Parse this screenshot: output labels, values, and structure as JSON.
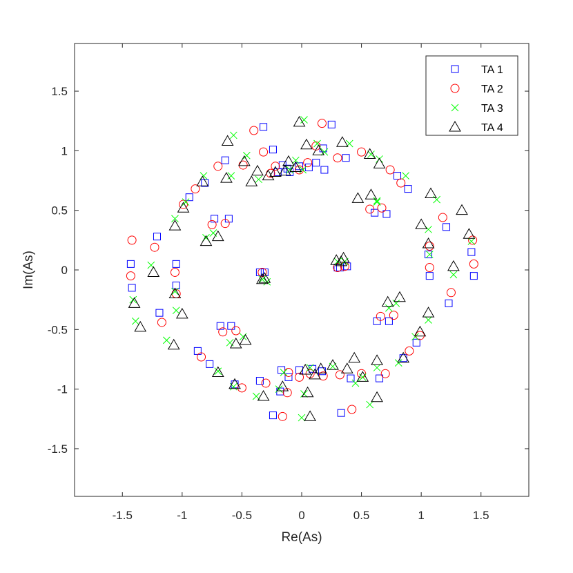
{
  "chart_data": {
    "type": "scatter",
    "xlabel": "Re(As)",
    "ylabel": "Im(As)",
    "xlim": [
      -1.9,
      1.9
    ],
    "ylim": [
      -1.9,
      1.9
    ],
    "xticks": [
      -1.5,
      -1,
      -0.5,
      0,
      0.5,
      1,
      1.5
    ],
    "yticks": [
      -1.5,
      -1,
      -0.5,
      0,
      0.5,
      1,
      1.5
    ],
    "xtick_labels": [
      "-1.5",
      "-1",
      "-0.5",
      "0",
      "0.5",
      "1",
      "1.5"
    ],
    "ytick_labels": [
      "-1.5",
      "-1",
      "-0.5",
      "0",
      "0.5",
      "1",
      "1.5"
    ],
    "grid": false,
    "legend_position": "top-right",
    "series": [
      {
        "name": "TA 1",
        "marker": "square",
        "color": "#0000ff",
        "points": [
          [
            -1.43,
            0.05
          ],
          [
            -1.42,
            -0.15
          ],
          [
            -1.21,
            0.28
          ],
          [
            -1.19,
            -0.36
          ],
          [
            -1.05,
            0.05
          ],
          [
            -1.05,
            -0.13
          ],
          [
            -0.94,
            0.61
          ],
          [
            -0.87,
            -0.68
          ],
          [
            -0.81,
            0.73
          ],
          [
            -0.77,
            -0.79
          ],
          [
            -0.73,
            0.43
          ],
          [
            -0.68,
            -0.47
          ],
          [
            -0.64,
            0.92
          ],
          [
            -0.61,
            0.43
          ],
          [
            -0.59,
            -0.47
          ],
          [
            -0.56,
            -0.96
          ],
          [
            -0.35,
            -0.02
          ],
          [
            -0.35,
            -0.93
          ],
          [
            -0.32,
            1.2
          ],
          [
            -0.31,
            -0.02
          ],
          [
            -0.24,
            1.01
          ],
          [
            -0.24,
            -1.22
          ],
          [
            -0.2,
            0.82
          ],
          [
            -0.18,
            -1.02
          ],
          [
            -0.17,
            -0.84
          ],
          [
            -0.16,
            0.88
          ],
          [
            -0.12,
            0.85
          ],
          [
            -0.11,
            -0.9
          ],
          [
            -0.1,
            0.82
          ],
          [
            -0.02,
            0.87
          ],
          [
            -0.02,
            -0.84
          ],
          [
            0.06,
            0.86
          ],
          [
            0.09,
            -0.83
          ],
          [
            0.12,
            0.9
          ],
          [
            0.17,
            -0.85
          ],
          [
            0.18,
            1.02
          ],
          [
            0.19,
            0.84
          ],
          [
            0.25,
            1.22
          ],
          [
            0.3,
            0.02
          ],
          [
            0.32,
            0.02
          ],
          [
            0.33,
            -1.2
          ],
          [
            0.37,
            0.94
          ],
          [
            0.38,
            0.03
          ],
          [
            0.41,
            -0.91
          ],
          [
            0.61,
            0.48
          ],
          [
            0.63,
            -0.43
          ],
          [
            0.65,
            -0.91
          ],
          [
            0.71,
            0.47
          ],
          [
            0.73,
            -0.43
          ],
          [
            0.8,
            0.79
          ],
          [
            0.85,
            -0.74
          ],
          [
            0.89,
            0.68
          ],
          [
            0.96,
            -0.61
          ],
          [
            1.06,
            0.13
          ],
          [
            1.07,
            -0.05
          ],
          [
            1.21,
            0.36
          ],
          [
            1.23,
            -0.28
          ],
          [
            1.42,
            0.15
          ],
          [
            1.44,
            -0.05
          ]
        ]
      },
      {
        "name": "TA 2",
        "marker": "circle",
        "color": "#ff0000",
        "points": [
          [
            -1.43,
            -0.05
          ],
          [
            -1.42,
            0.25
          ],
          [
            -1.23,
            0.19
          ],
          [
            -1.17,
            -0.44
          ],
          [
            -1.06,
            -0.02
          ],
          [
            -1.05,
            -0.2
          ],
          [
            -0.99,
            0.55
          ],
          [
            -0.89,
            0.68
          ],
          [
            -0.84,
            -0.73
          ],
          [
            -0.75,
            0.38
          ],
          [
            -0.7,
            0.87
          ],
          [
            -0.66,
            -0.52
          ],
          [
            -0.64,
            0.39
          ],
          [
            -0.55,
            -0.51
          ],
          [
            -0.5,
            -0.99
          ],
          [
            -0.49,
            0.88
          ],
          [
            -0.4,
            1.17
          ],
          [
            -0.33,
            -0.02
          ],
          [
            -0.32,
            0.99
          ],
          [
            -0.3,
            -0.95
          ],
          [
            -0.26,
            0.81
          ],
          [
            -0.22,
            0.87
          ],
          [
            -0.16,
            -1.23
          ],
          [
            -0.12,
            -1.03
          ],
          [
            -0.11,
            -0.86
          ],
          [
            -0.02,
            0.84
          ],
          [
            -0.02,
            -0.9
          ],
          [
            0.05,
            0.9
          ],
          [
            0.07,
            -0.87
          ],
          [
            0.12,
            1.04
          ],
          [
            0.17,
            1.23
          ],
          [
            0.18,
            -0.89
          ],
          [
            0.3,
            0.94
          ],
          [
            0.3,
            0.02
          ],
          [
            0.36,
            0.03
          ],
          [
            0.32,
            -0.88
          ],
          [
            0.42,
            -1.17
          ],
          [
            0.5,
            0.99
          ],
          [
            0.5,
            -0.87
          ],
          [
            0.57,
            0.51
          ],
          [
            0.66,
            -0.39
          ],
          [
            0.67,
            0.52
          ],
          [
            0.7,
            -0.87
          ],
          [
            0.74,
            0.84
          ],
          [
            0.77,
            -0.38
          ],
          [
            0.83,
            0.73
          ],
          [
            0.9,
            -0.68
          ],
          [
            0.99,
            -0.55
          ],
          [
            1.07,
            0.2
          ],
          [
            1.07,
            0.02
          ],
          [
            1.18,
            0.44
          ],
          [
            1.25,
            -0.19
          ],
          [
            1.43,
            0.25
          ],
          [
            1.44,
            0.05
          ]
        ]
      },
      {
        "name": "TA 3",
        "marker": "x",
        "color": "#00ff00",
        "points": [
          [
            -1.41,
            -0.25
          ],
          [
            -1.39,
            -0.43
          ],
          [
            -1.26,
            0.04
          ],
          [
            -1.13,
            -0.59
          ],
          [
            -1.06,
            0.43
          ],
          [
            -1.05,
            -0.34
          ],
          [
            -1.06,
            -0.18
          ],
          [
            -0.97,
            0.57
          ],
          [
            -0.82,
            0.79
          ],
          [
            -0.8,
            0.27
          ],
          [
            -0.74,
            0.31
          ],
          [
            -0.7,
            -0.85
          ],
          [
            -0.59,
            0.79
          ],
          [
            -0.57,
            1.13
          ],
          [
            -0.57,
            -0.98
          ],
          [
            -0.6,
            -0.61
          ],
          [
            -0.49,
            -0.56
          ],
          [
            -0.46,
            0.96
          ],
          [
            -0.38,
            -1.06
          ],
          [
            -0.36,
            0.76
          ],
          [
            -0.33,
            -0.08
          ],
          [
            -0.29,
            -0.1
          ],
          [
            -0.19,
            -1.0
          ],
          [
            -0.15,
            -0.86
          ],
          [
            -0.1,
            0.84
          ],
          [
            -0.05,
            0.92
          ],
          [
            0.0,
            -1.24
          ],
          [
            0.01,
            0.84
          ],
          [
            0.02,
            1.26
          ],
          [
            0.02,
            -1.04
          ],
          [
            0.07,
            -0.82
          ],
          [
            0.13,
            1.06
          ],
          [
            0.19,
            0.99
          ],
          [
            0.26,
            -0.81
          ],
          [
            0.3,
            0.07
          ],
          [
            0.36,
            0.07
          ],
          [
            0.4,
            1.06
          ],
          [
            0.45,
            -0.95
          ],
          [
            0.51,
            -0.9
          ],
          [
            0.58,
            0.97
          ],
          [
            0.57,
            -1.13
          ],
          [
            0.63,
            0.58
          ],
          [
            0.63,
            0.57
          ],
          [
            0.63,
            -0.82
          ],
          [
            0.65,
            0.93
          ],
          [
            0.73,
            -0.32
          ],
          [
            0.79,
            -0.28
          ],
          [
            0.81,
            -0.78
          ],
          [
            0.87,
            0.79
          ],
          [
            0.95,
            -0.56
          ],
          [
            1.06,
            0.34
          ],
          [
            1.07,
            0.13
          ],
          [
            1.06,
            -0.42
          ],
          [
            1.13,
            0.59
          ],
          [
            1.27,
            -0.04
          ],
          [
            1.42,
            0.24
          ]
        ]
      },
      {
        "name": "TA 4",
        "marker": "triangle",
        "color": "#000000",
        "points": [
          [
            -1.4,
            -0.28
          ],
          [
            -1.35,
            -0.48
          ],
          [
            -1.24,
            -0.02
          ],
          [
            -1.06,
            0.37
          ],
          [
            -1.06,
            -0.2
          ],
          [
            -1.0,
            -0.37
          ],
          [
            -0.99,
            0.52
          ],
          [
            -1.07,
            -0.63
          ],
          [
            -0.83,
            0.74
          ],
          [
            -0.8,
            0.24
          ],
          [
            -0.7,
            0.28
          ],
          [
            -0.7,
            -0.86
          ],
          [
            -0.62,
            1.08
          ],
          [
            -0.63,
            0.77
          ],
          [
            -0.56,
            -0.96
          ],
          [
            -0.55,
            -0.62
          ],
          [
            -0.48,
            0.91
          ],
          [
            -0.47,
            -0.59
          ],
          [
            -0.42,
            0.74
          ],
          [
            -0.37,
            0.83
          ],
          [
            -0.33,
            -0.08
          ],
          [
            -0.32,
            -1.06
          ],
          [
            -0.31,
            -0.07
          ],
          [
            -0.28,
            0.79
          ],
          [
            -0.22,
            0.82
          ],
          [
            -0.16,
            -0.98
          ],
          [
            -0.14,
            0.83
          ],
          [
            -0.11,
            0.91
          ],
          [
            -0.02,
            1.24
          ],
          [
            -0.05,
            0.86
          ],
          [
            0.04,
            1.05
          ],
          [
            0.03,
            -0.84
          ],
          [
            0.05,
            -1.03
          ],
          [
            0.07,
            -1.23
          ],
          [
            0.14,
            1.0
          ],
          [
            0.16,
            -0.83
          ],
          [
            0.11,
            -0.88
          ],
          [
            0.26,
            -0.8
          ],
          [
            0.29,
            0.08
          ],
          [
            0.33,
            0.07
          ],
          [
            0.35,
            0.1
          ],
          [
            0.34,
            1.07
          ],
          [
            0.38,
            -0.83
          ],
          [
            0.44,
            -0.74
          ],
          [
            0.47,
            0.6
          ],
          [
            0.51,
            -0.9
          ],
          [
            0.57,
            0.97
          ],
          [
            0.58,
            0.63
          ],
          [
            0.65,
            0.89
          ],
          [
            0.63,
            -0.76
          ],
          [
            0.63,
            -1.07
          ],
          [
            0.72,
            -0.27
          ],
          [
            0.82,
            -0.23
          ],
          [
            0.85,
            -0.74
          ],
          [
            1.0,
            0.38
          ],
          [
            0.99,
            -0.52
          ],
          [
            1.06,
            0.22
          ],
          [
            1.08,
            0.64
          ],
          [
            1.06,
            -0.36
          ],
          [
            1.27,
            0.03
          ],
          [
            1.34,
            0.5
          ],
          [
            1.4,
            0.3
          ]
        ]
      }
    ]
  }
}
